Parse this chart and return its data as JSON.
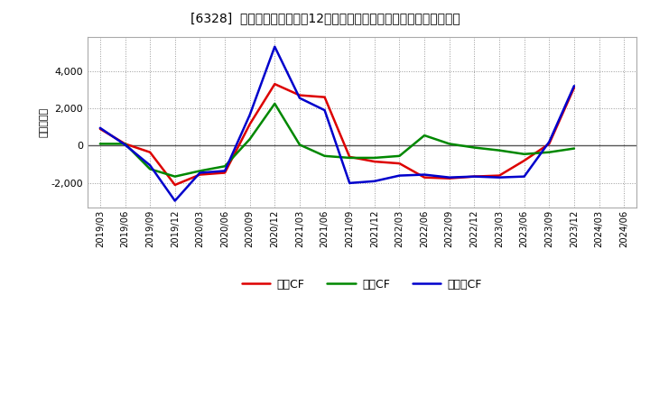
{
  "title": "[6328]  キャッシュフローの12か月移動合計の対前年同期増減額の推移",
  "ylabel": "（百万円）",
  "background_color": "#ffffff",
  "plot_bg_color": "#ffffff",
  "grid_color": "#999999",
  "line_colors": {
    "営業CF": "#dd0000",
    "投資CF": "#008800",
    "フリーCF": "#0000cc"
  },
  "x_labels": [
    "2019/03",
    "2019/06",
    "2019/09",
    "2019/12",
    "2020/03",
    "2020/06",
    "2020/09",
    "2020/12",
    "2021/03",
    "2021/06",
    "2021/09",
    "2021/12",
    "2022/03",
    "2022/06",
    "2022/09",
    "2022/12",
    "2023/03",
    "2023/06",
    "2023/09",
    "2023/12",
    "2024/03",
    "2024/06"
  ],
  "series": {
    "営業CF": [
      900,
      100,
      -350,
      -2100,
      -1550,
      -1450,
      1150,
      3300,
      2700,
      2600,
      -600,
      -850,
      -950,
      -1700,
      -1750,
      -1650,
      -1600,
      -800,
      100,
      3100,
      null,
      null
    ],
    "投資CF": [
      100,
      100,
      -1250,
      -1650,
      -1350,
      -1100,
      350,
      2250,
      50,
      -550,
      -650,
      -650,
      -550,
      550,
      100,
      -100,
      -250,
      -450,
      -350,
      -150,
      null,
      null
    ],
    "フリーCF": [
      950,
      50,
      -1050,
      -2950,
      -1450,
      -1350,
      1650,
      5300,
      2550,
      1900,
      -2000,
      -1900,
      -1600,
      -1550,
      -1700,
      -1650,
      -1700,
      -1650,
      200,
      3200,
      null,
      null
    ]
  },
  "ylim": [
    -3300,
    5800
  ],
  "yticks": [
    -2000,
    0,
    2000,
    4000
  ],
  "legend_labels": [
    "営業CF",
    "投資CF",
    "フリーCF"
  ],
  "legend_display": [
    "営業CF",
    "投資CF",
    "フリーCF"
  ]
}
